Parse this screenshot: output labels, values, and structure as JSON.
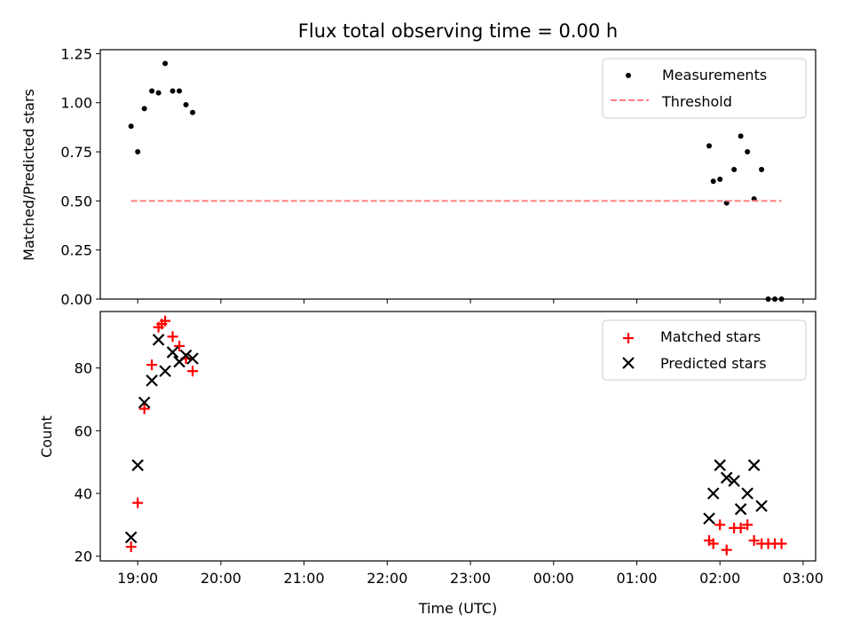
{
  "chart_data": {
    "title": "Flux total observing time = 0.00 h",
    "xlabel": "Time (UTC)",
    "x_ticks": [
      "19:00",
      "20:00",
      "21:00",
      "22:00",
      "23:00",
      "00:00",
      "01:00",
      "02:00",
      "03:00"
    ],
    "x_tick_hours": [
      19,
      20,
      21,
      22,
      23,
      24,
      25,
      26,
      27
    ],
    "xlim_hours": [
      18.55,
      27.15
    ],
    "top": {
      "type": "scatter",
      "ylabel": "Matched/Predicted stars",
      "ylim": [
        0,
        1.27
      ],
      "y_ticks": [
        "0.00",
        "0.25",
        "0.50",
        "0.75",
        "1.00",
        "1.25"
      ],
      "y_tick_values": [
        0,
        0.25,
        0.5,
        0.75,
        1.0,
        1.25
      ],
      "legend_position": "top-right",
      "series": [
        {
          "name": "Measurements",
          "kind": "points",
          "color": "#000000",
          "x": [
            18.92,
            19.0,
            19.08,
            19.17,
            19.25,
            19.33,
            19.42,
            19.5,
            19.58,
            19.66,
            25.87,
            25.92,
            26.0,
            26.08,
            26.17,
            26.25,
            26.33,
            26.41,
            26.5,
            26.58,
            26.66,
            26.74
          ],
          "y": [
            0.88,
            0.75,
            0.97,
            1.06,
            1.05,
            1.2,
            1.06,
            1.06,
            0.99,
            0.95,
            0.78,
            0.6,
            0.61,
            0.49,
            0.66,
            0.83,
            0.75,
            0.51,
            0.66,
            0.0,
            0.0,
            0.0
          ]
        },
        {
          "name": "Threshold",
          "kind": "dashed-line",
          "color": "#ff7f7f",
          "x": [
            18.92,
            26.74
          ],
          "y": [
            0.5,
            0.5
          ]
        }
      ]
    },
    "bottom": {
      "type": "scatter",
      "ylabel": "Count",
      "ylim": [
        18.5,
        98
      ],
      "y_ticks": [
        "20",
        "40",
        "60",
        "80"
      ],
      "y_tick_values": [
        20,
        40,
        60,
        80
      ],
      "legend_position": "top-right",
      "series": [
        {
          "name": "Matched stars",
          "marker": "plus",
          "color": "#ff0000",
          "x": [
            18.92,
            19.0,
            19.08,
            19.17,
            19.25,
            19.29,
            19.33,
            19.42,
            19.5,
            19.58,
            19.66,
            25.87,
            25.92,
            26.0,
            26.08,
            26.17,
            26.25,
            26.33,
            26.41,
            26.5,
            26.58,
            26.66,
            26.74
          ],
          "y": [
            23,
            37,
            67,
            81,
            93,
            94,
            95,
            90,
            87,
            83,
            79,
            25,
            24,
            30,
            22,
            29,
            29,
            30,
            25,
            24,
            24,
            24,
            24
          ]
        },
        {
          "name": "Predicted stars",
          "marker": "x",
          "color": "#000000",
          "x": [
            18.92,
            19.0,
            19.08,
            19.17,
            19.25,
            19.33,
            19.42,
            19.5,
            19.58,
            19.66,
            25.87,
            25.92,
            26.0,
            26.08,
            26.17,
            26.25,
            26.33,
            26.41,
            26.5
          ],
          "y": [
            26,
            49,
            69,
            76,
            89,
            79,
            85,
            82,
            84,
            83,
            32,
            40,
            49,
            45,
            44,
            35,
            40,
            49,
            36
          ]
        }
      ]
    }
  }
}
